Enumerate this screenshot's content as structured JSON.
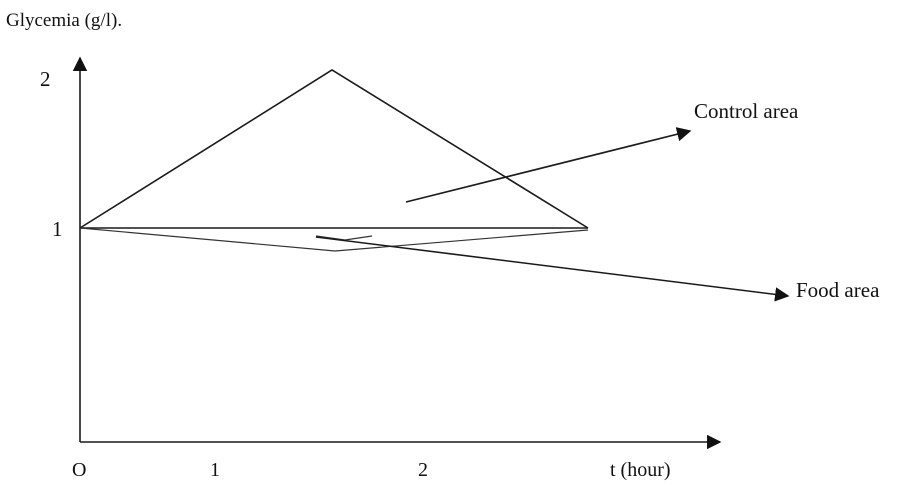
{
  "diagram": {
    "y_axis_label": "Glycemia (g/l).",
    "x_axis_label": "t (hour)",
    "origin_label": "O",
    "x_ticks": [
      "1",
      "2"
    ],
    "y_ticks": [
      "1",
      "2"
    ],
    "annotations": {
      "control": "Control area",
      "food": "Food area"
    },
    "line_color": "#1a1a1a"
  }
}
